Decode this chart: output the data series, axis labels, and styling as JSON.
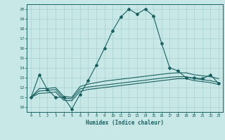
{
  "xlabel": "Humidex (Indice chaleur)",
  "xlim": [
    -0.5,
    23.5
  ],
  "ylim": [
    9.5,
    20.5
  ],
  "xticks": [
    0,
    1,
    2,
    3,
    4,
    5,
    6,
    7,
    8,
    9,
    10,
    11,
    12,
    13,
    14,
    15,
    16,
    17,
    18,
    19,
    20,
    21,
    22,
    23
  ],
  "yticks": [
    10,
    11,
    12,
    13,
    14,
    15,
    16,
    17,
    18,
    19,
    20
  ],
  "background_color": "#c8e8e8",
  "grid_color": "#a8d0d0",
  "line_color": "#1a6060",
  "line1_y": [
    11.0,
    13.3,
    11.8,
    11.0,
    11.0,
    9.8,
    11.3,
    12.7,
    14.3,
    16.0,
    17.8,
    19.2,
    20.0,
    19.5,
    20.0,
    19.3,
    16.5,
    14.0,
    13.7,
    13.0,
    13.0,
    12.9,
    13.3,
    12.4
  ],
  "line2_y": [
    11.0,
    11.9,
    11.9,
    12.0,
    11.1,
    11.0,
    12.1,
    12.35,
    12.5,
    12.65,
    12.75,
    12.85,
    12.95,
    13.05,
    13.15,
    13.25,
    13.35,
    13.45,
    13.5,
    13.5,
    13.3,
    13.2,
    13.1,
    12.9
  ],
  "line3_y": [
    11.0,
    11.65,
    11.7,
    11.8,
    10.9,
    10.85,
    11.85,
    12.05,
    12.15,
    12.25,
    12.35,
    12.45,
    12.55,
    12.65,
    12.75,
    12.85,
    12.95,
    13.05,
    13.1,
    13.1,
    12.9,
    12.8,
    12.7,
    12.5
  ],
  "line4_y": [
    11.0,
    11.4,
    11.45,
    11.55,
    10.7,
    10.65,
    11.6,
    11.8,
    11.9,
    12.0,
    12.1,
    12.2,
    12.3,
    12.4,
    12.5,
    12.6,
    12.7,
    12.8,
    12.9,
    12.9,
    12.7,
    12.6,
    12.5,
    12.3
  ]
}
